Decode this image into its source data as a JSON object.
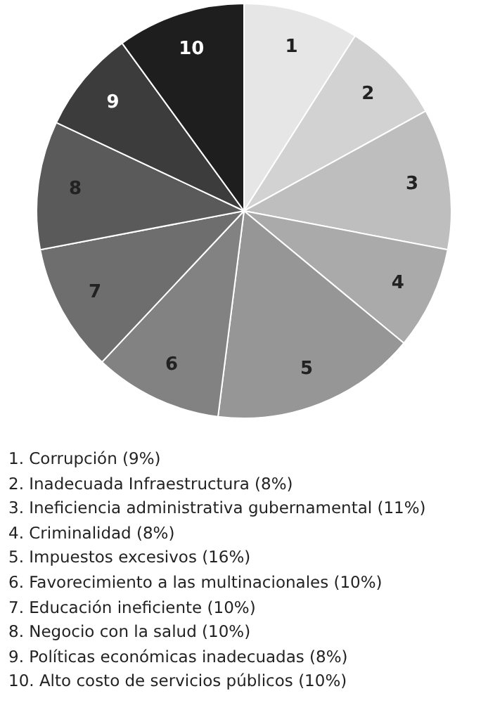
{
  "chart_data": {
    "type": "pie",
    "categories": [
      "1",
      "2",
      "3",
      "4",
      "5",
      "6",
      "7",
      "8",
      "9",
      "10"
    ],
    "values": [
      9,
      8,
      11,
      8,
      16,
      10,
      10,
      10,
      8,
      10
    ],
    "colors": [
      "#e6e6e6",
      "#d2d2d2",
      "#bebebe",
      "#aaaaaa",
      "#969696",
      "#828282",
      "#6e6e6e",
      "#5a5a5a",
      "#3c3c3c",
      "#1e1e1e"
    ],
    "annotations": [
      "1. Corrupción (9%)",
      "2. Inadecuada Infraestructura (8%)",
      "3. Ineficiencia administrativa gubernamental (11%)",
      "4. Criminalidad (8%)",
      "5. Impuestos excesivos (16%)",
      "6. Favorecimiento a las multinacionales (10%)",
      "7. Educación ineficiente (10%)",
      "8. Negocio con la salud (10%)",
      "9. Políticas económicas inadecuadas (8%)",
      "10. Alto costo de servicios públicos (10%)"
    ]
  }
}
